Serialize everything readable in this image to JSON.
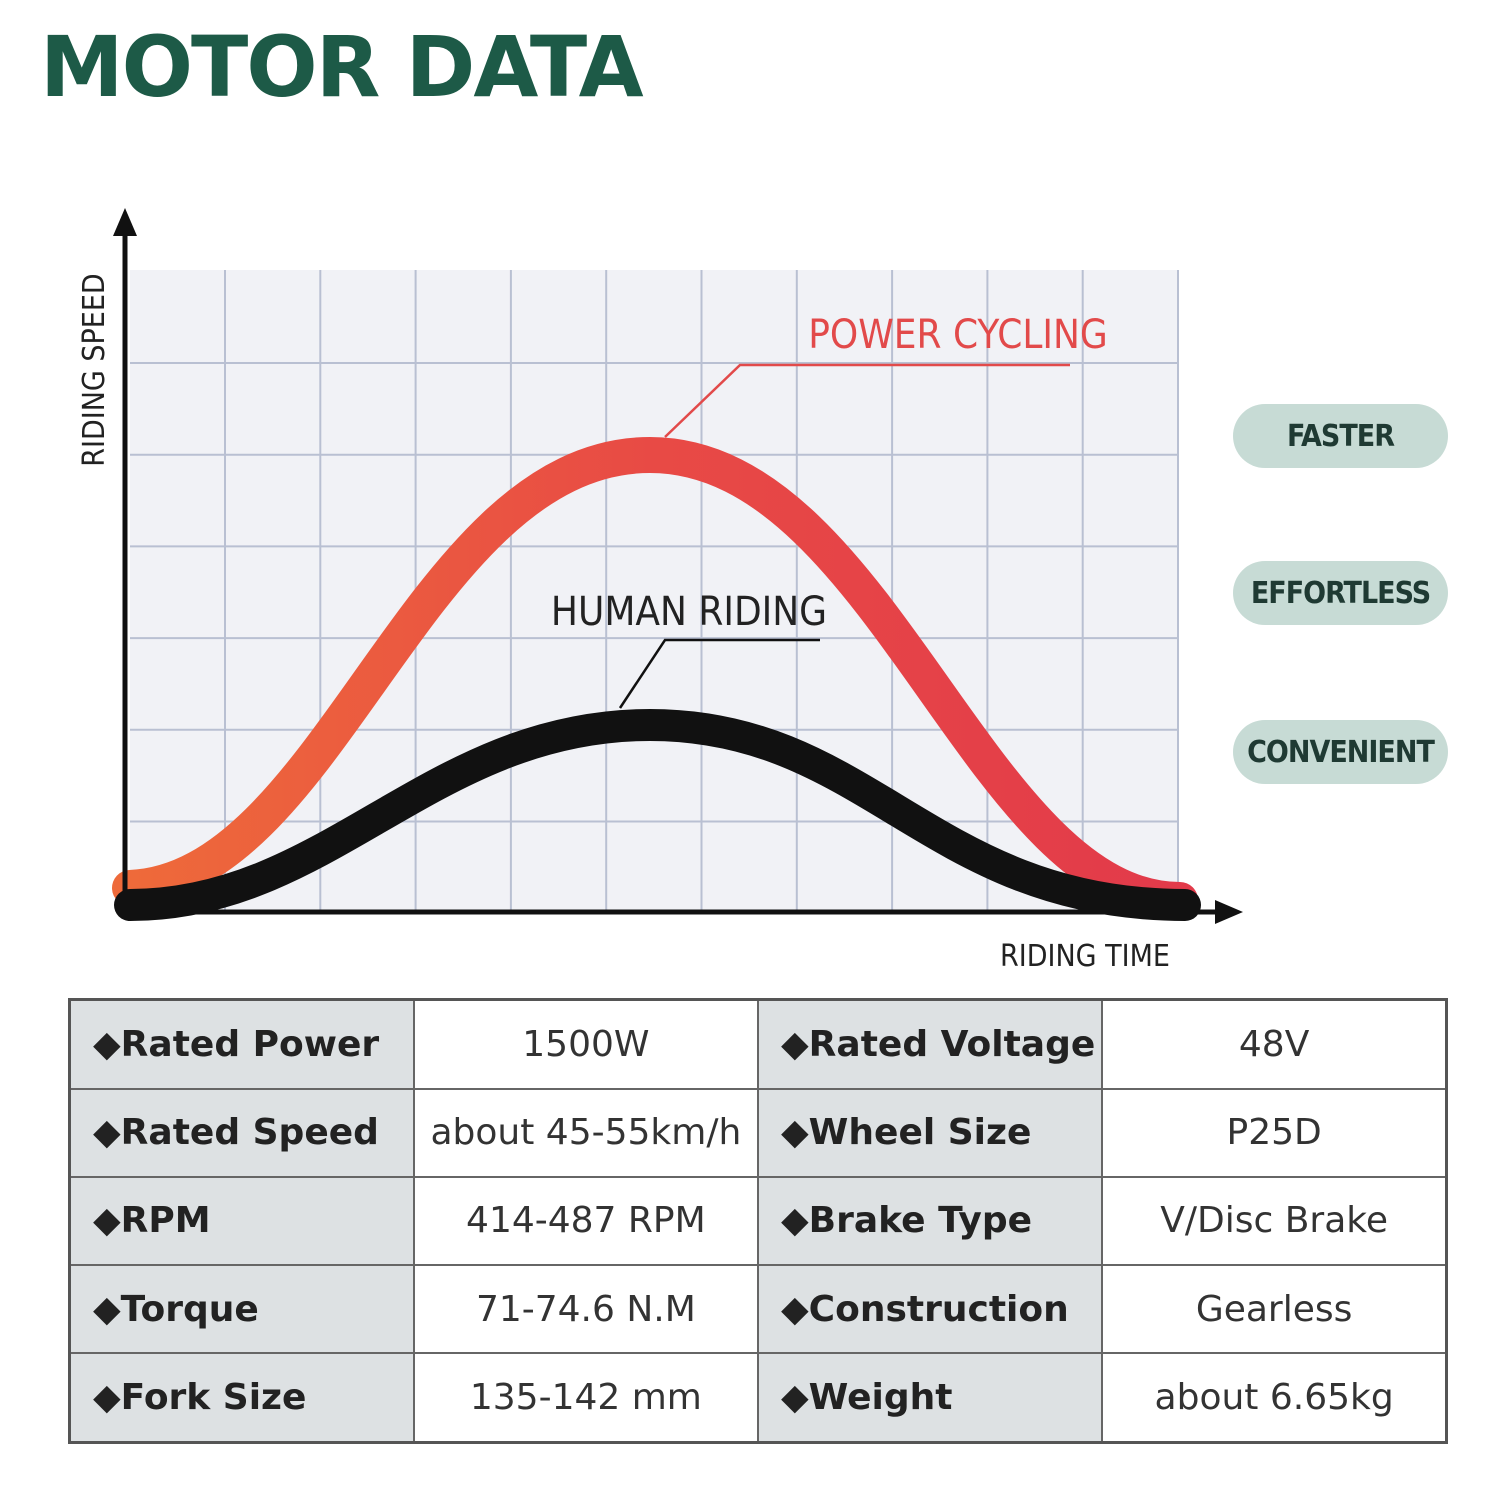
{
  "header": {
    "title": "MOTOR DATA"
  },
  "chart": {
    "y_axis_label": "RIDING SPEED",
    "x_axis_label": "RIDING TIME",
    "curves": [
      {
        "label": "POWER CYCLING"
      },
      {
        "label": "HUMAN RIDING"
      }
    ]
  },
  "badges": [
    "FASTER",
    "EFFORTLESS",
    "CONVENIENT"
  ],
  "table": {
    "rows": [
      [
        "◆Rated Power",
        "1500W",
        "◆Rated Voltage",
        "48V"
      ],
      [
        "◆Rated Speed",
        "about 45-55km/h",
        "◆Wheel Size",
        "P25D"
      ],
      [
        "◆RPM",
        "414-487 RPM",
        "◆Brake Type",
        "V/Disc Brake"
      ],
      [
        "◆Torque",
        "71-74.6 N.M",
        "◆Construction",
        "Gearless"
      ],
      [
        "◆Fork Size",
        "135-142 mm",
        "◆Weight",
        "about 6.65kg"
      ]
    ]
  }
}
